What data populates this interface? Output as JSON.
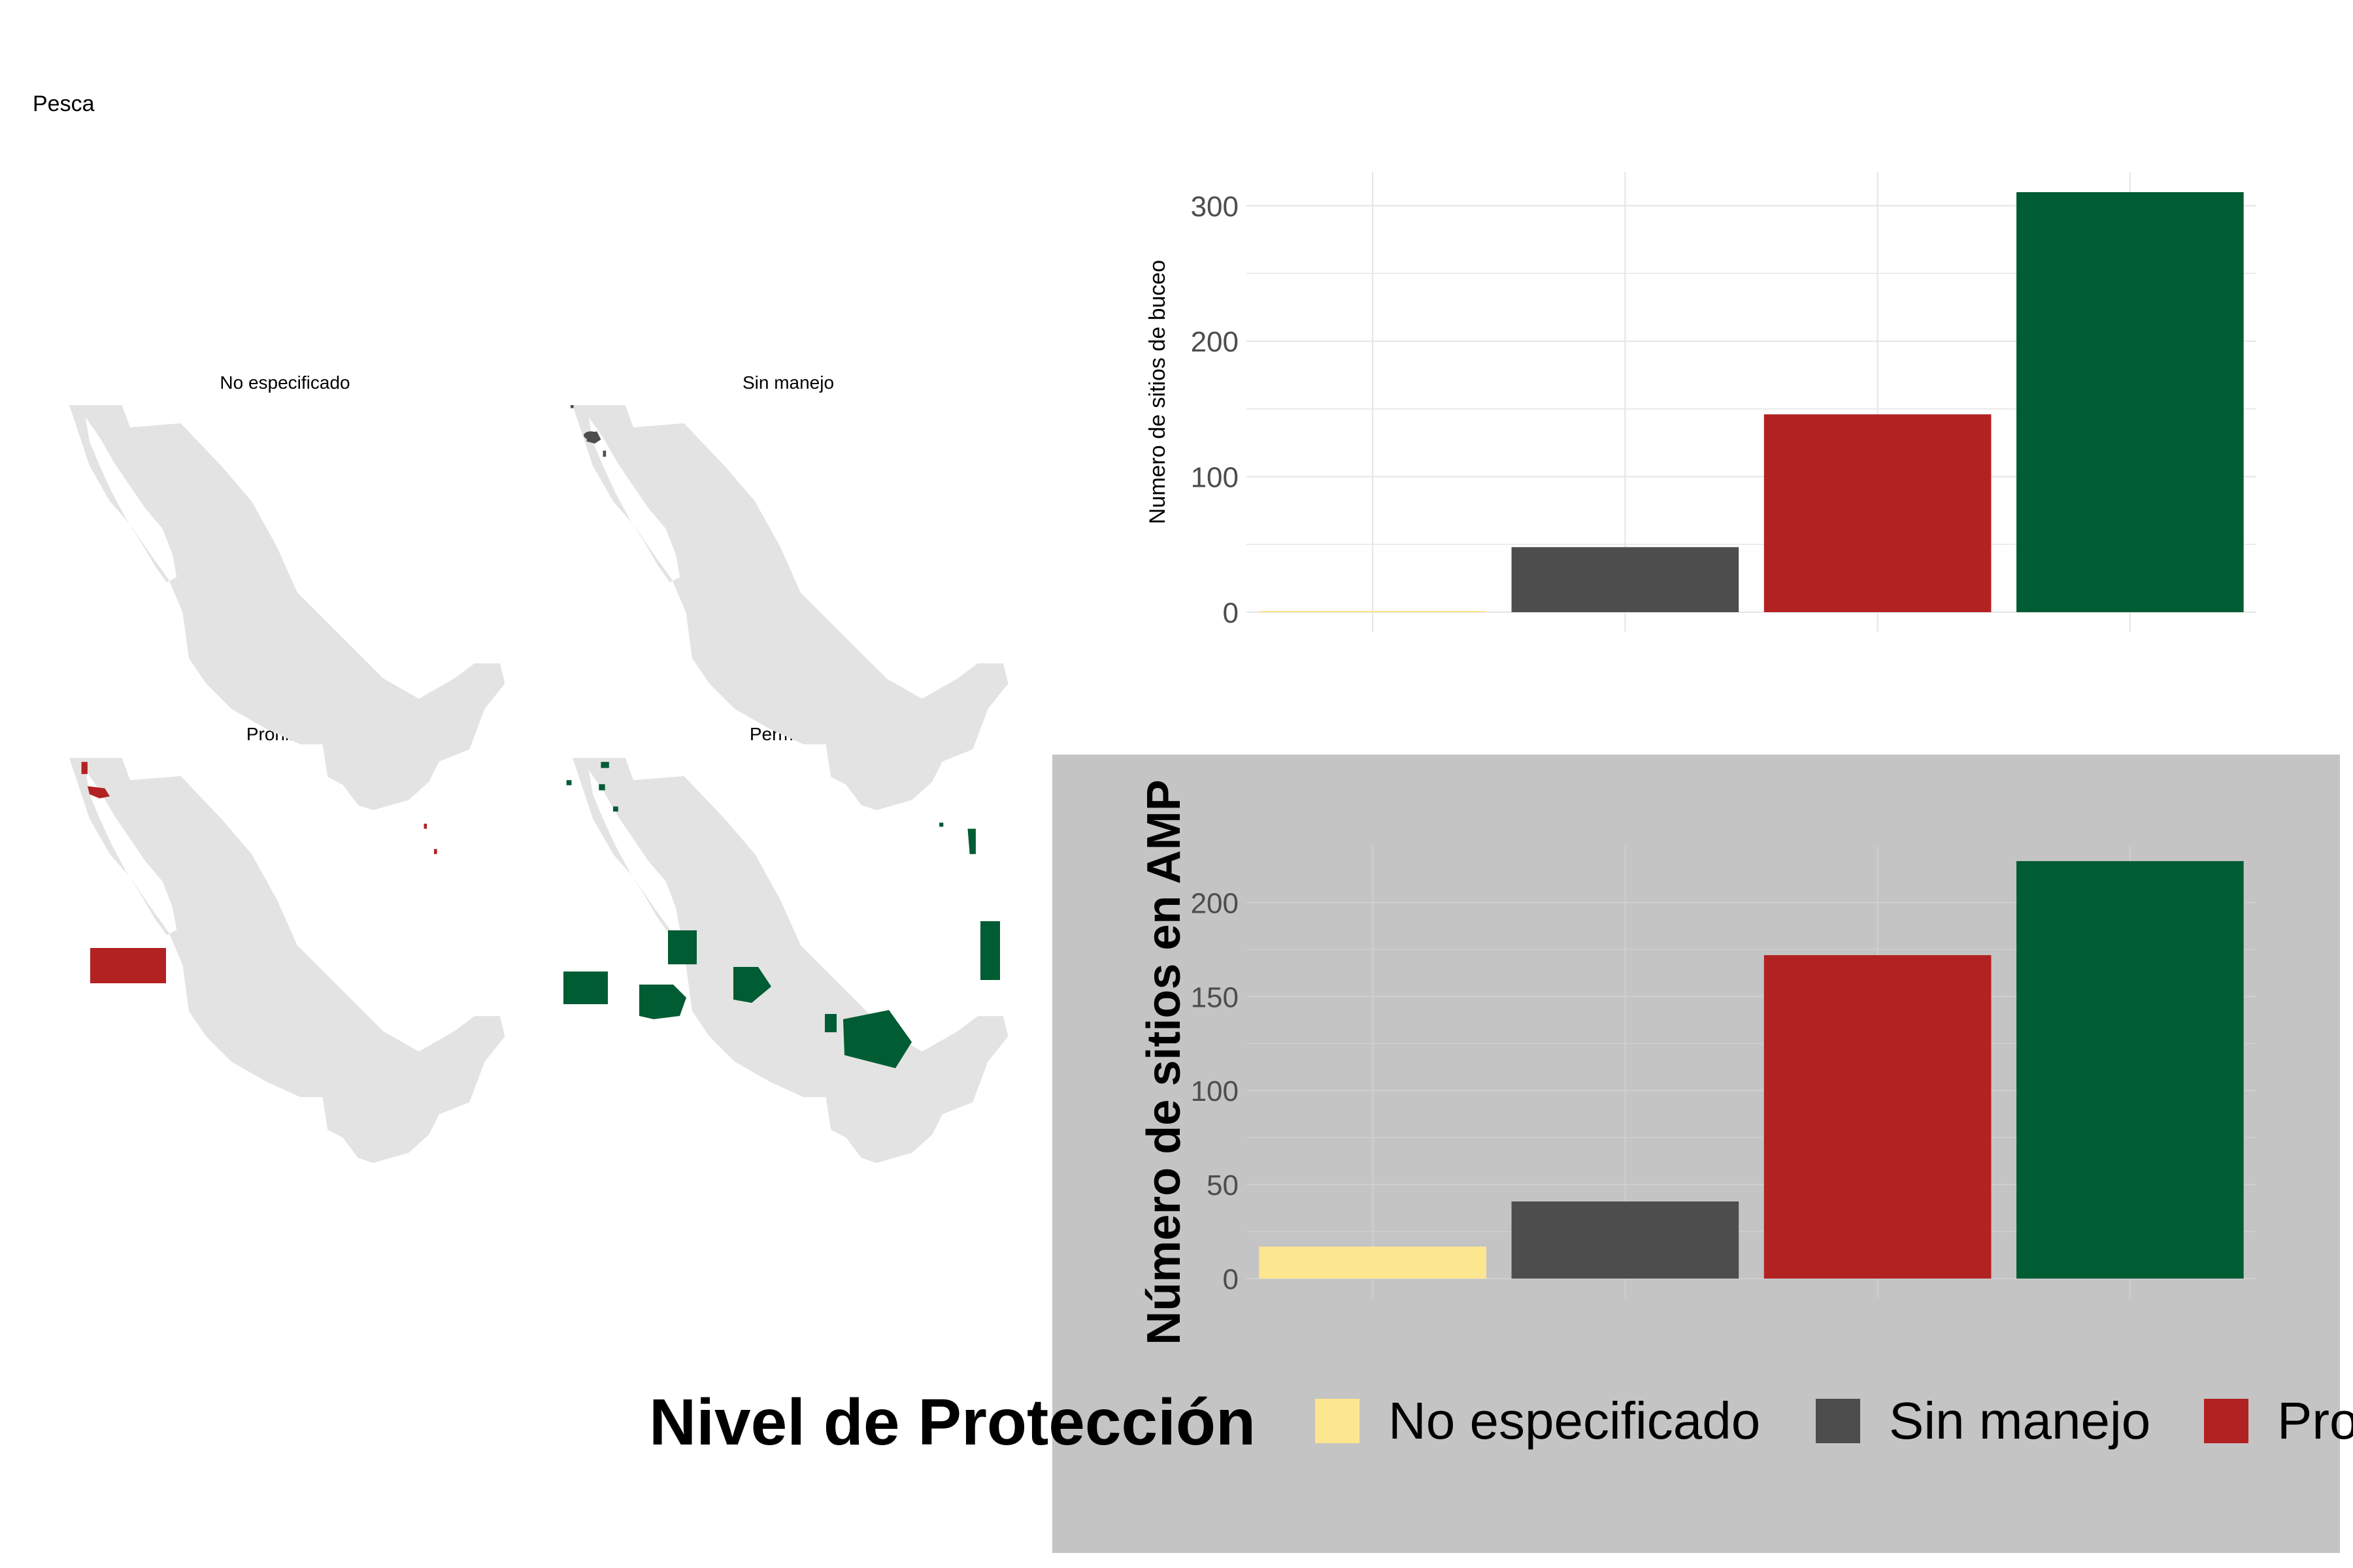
{
  "page": {
    "title": "Pesca"
  },
  "maps": [
    {
      "title": "No especificado",
      "color": "#fde690"
    },
    {
      "title": "Sin manejo",
      "color": "#4d4d4d"
    },
    {
      "title": "Prohibida",
      "color": "#b22222"
    },
    {
      "title": "Permitida",
      "color": "#005c33"
    }
  ],
  "legend": {
    "title": "Nivel de Protección",
    "items": [
      {
        "label": "No especificado",
        "color": "#fde690"
      },
      {
        "label": "Sin manejo",
        "color": "#4d4d4d"
      },
      {
        "label": "Pro",
        "color": "#b22222"
      }
    ]
  },
  "chart_data": [
    {
      "type": "bar",
      "categories": [
        "No especificado",
        "Sin manejo",
        "Prohibida",
        "Permitida"
      ],
      "values": [
        1,
        48,
        146,
        310
      ],
      "colors": [
        "#fde690",
        "#4d4d4d",
        "#b22222",
        "#005c33"
      ],
      "ylabel": "Numero de sitios de buceo",
      "ylim": [
        0,
        325
      ],
      "yticks": [
        0,
        100,
        200,
        300
      ],
      "grid": true
    },
    {
      "type": "bar",
      "categories": [
        "No especificado",
        "Sin manejo",
        "Prohibida",
        "Permitida"
      ],
      "values": [
        17,
        41,
        172,
        222
      ],
      "colors": [
        "#fde690",
        "#4d4d4d",
        "#b22222",
        "#005c33"
      ],
      "ylabel": "Número de sitios en AMP",
      "ylim": [
        0,
        230
      ],
      "yticks": [
        0,
        50,
        100,
        150,
        200
      ],
      "grid": true,
      "background": "#c4c4c4"
    }
  ]
}
